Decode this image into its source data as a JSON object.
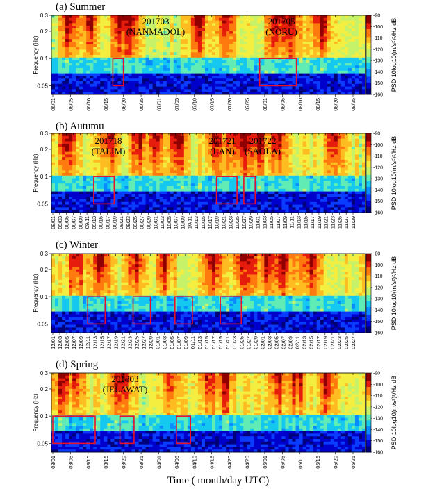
{
  "figure": {
    "xlabel": "Time ( month/day UTC)"
  },
  "colormap": [
    "#00007a",
    "#0000cc",
    "#0a3cff",
    "#0a8cff",
    "#15c8f0",
    "#60ecb4",
    "#c6f26a",
    "#f4ee40",
    "#ffbc21",
    "#ff7a0e",
    "#e61c0c",
    "#900000"
  ],
  "chart_data": [
    {
      "type": "heatmap",
      "title": "(a) Summer",
      "ylabel": "Frequency (Hz)",
      "yticks": [
        "0.3",
        "0.2",
        "0.1",
        "0.05"
      ],
      "colorbar_label": "PSD 10log10(m/s²)²/Hz dB",
      "colorbar_ticks": [
        "-90",
        "-100",
        "-110",
        "-120",
        "-130",
        "-140",
        "-150",
        "-160"
      ],
      "clim": [
        -160,
        -90
      ],
      "x_ticks": [
        "06/01",
        "06/05",
        "06/10",
        "06/15",
        "06/20",
        "06/25",
        "07/01",
        "07/05",
        "07/10",
        "07/15",
        "07/20",
        "07/25",
        "08/01",
        "08/05",
        "08/10",
        "08/15",
        "08/20",
        "08/25"
      ],
      "annotations": [
        {
          "line1": "201703",
          "line2": "(NANMADOL)"
        },
        {
          "line1": "201705",
          "line2": "(NORU)"
        }
      ],
      "boxes": [
        {
          "x0": "06/17",
          "x1": "06/20",
          "f0": 0.05,
          "f1": 0.1
        },
        {
          "x0": "07/30",
          "x1": "08/09",
          "f0": 0.05,
          "f1": 0.1
        }
      ]
    },
    {
      "type": "heatmap",
      "title": "(b) Autumu",
      "ylabel": "Frequency (Hz)",
      "yticks": [
        "0.3",
        "0.2",
        "0.1",
        "0.05"
      ],
      "colorbar_label": "PSD 10log10(m/s²)²/Hz dB",
      "colorbar_ticks": [
        "-90",
        "-100",
        "-110",
        "-120",
        "-130",
        "-140",
        "-150",
        "-160"
      ],
      "clim": [
        -160,
        -90
      ],
      "x_ticks": [
        "09/01",
        "09/03",
        "09/05",
        "09/07",
        "09/09",
        "09/11",
        "09/13",
        "09/15",
        "09/17",
        "09/19",
        "09/21",
        "09/23",
        "09/25",
        "09/27",
        "09/29",
        "10/01",
        "10/03",
        "10/05",
        "10/07",
        "10/09",
        "10/11",
        "10/13",
        "10/15",
        "10/17",
        "10/19",
        "10/21",
        "10/23",
        "10/25",
        "10/27",
        "10/29",
        "11/01",
        "11/03",
        "11/05",
        "11/07",
        "11/09",
        "11/11",
        "11/13",
        "11/15",
        "11/17",
        "11/19",
        "11/21",
        "11/23",
        "11/25",
        "11/27",
        "11/29"
      ],
      "annotations": [
        {
          "line1": "201718",
          "line2": "(TALIM)"
        },
        {
          "line1": "201721",
          "line2": "(LAN)"
        },
        {
          "line1": "201722",
          "line2": "(SAOLA)"
        }
      ],
      "boxes": [
        {
          "x0": "09/13",
          "x1": "09/19",
          "f0": 0.05,
          "f1": 0.1
        },
        {
          "x0": "10/19",
          "x1": "10/25",
          "f0": 0.05,
          "f1": 0.1
        },
        {
          "x0": "10/27",
          "x1": "10/31",
          "f0": 0.05,
          "f1": 0.1
        }
      ]
    },
    {
      "type": "heatmap",
      "title": "(c) Winter",
      "ylabel": "Frequency (Hz)",
      "yticks": [
        "0.3",
        "0.2",
        "0.1",
        "0.05"
      ],
      "colorbar_label": "PSD 10log10(m/s²)²/Hz dB",
      "colorbar_ticks": [
        "-90",
        "-100",
        "-110",
        "-120",
        "-130",
        "-140",
        "-150",
        "-160"
      ],
      "clim": [
        -160,
        -90
      ],
      "x_ticks": [
        "12/01",
        "12/03",
        "12/05",
        "12/07",
        "12/09",
        "12/11",
        "12/13",
        "12/15",
        "12/17",
        "12/19",
        "12/21",
        "12/23",
        "12/25",
        "12/27",
        "12/29",
        "01/01",
        "01/03",
        "01/05",
        "01/07",
        "01/09",
        "01/11",
        "01/13",
        "01/15",
        "01/17",
        "01/19",
        "01/21",
        "01/23",
        "01/25",
        "01/27",
        "01/29",
        "02/01",
        "02/03",
        "02/05",
        "02/07",
        "02/09",
        "02/11",
        "02/13",
        "02/15",
        "02/17",
        "02/19",
        "02/21",
        "02/23",
        "02/25",
        "02/27"
      ],
      "annotations": [],
      "boxes": [
        {
          "x0": "12/11",
          "x1": "12/16",
          "f0": 0.05,
          "f1": 0.1
        },
        {
          "x0": "12/24",
          "x1": "12/29",
          "f0": 0.05,
          "f1": 0.1
        },
        {
          "x0": "01/06",
          "x1": "01/11",
          "f0": 0.05,
          "f1": 0.1
        },
        {
          "x0": "01/19",
          "x1": "01/25",
          "f0": 0.05,
          "f1": 0.1
        }
      ]
    },
    {
      "type": "heatmap",
      "title": "(d) Spring",
      "ylabel": "Frequency (Hz)",
      "yticks": [
        "0.3",
        "0.2",
        "0.1",
        "0.05"
      ],
      "colorbar_label": "PSD 10log10(m/s²)²/Hz dB",
      "colorbar_ticks": [
        "-90",
        "-100",
        "-110",
        "-120",
        "-130",
        "-140",
        "-150",
        "-160"
      ],
      "clim": [
        -160,
        -90
      ],
      "x_ticks": [
        "03/01",
        "03/05",
        "03/10",
        "03/15",
        "03/20",
        "03/25",
        "04/01",
        "04/05",
        "04/10",
        "04/15",
        "04/20",
        "04/25",
        "05/01",
        "05/05",
        "05/10",
        "05/15",
        "05/20",
        "05/25"
      ],
      "annotations": [
        {
          "line1": "201803",
          "line2": "(JELAWAT)"
        }
      ],
      "boxes": [
        {
          "x0": "03/01",
          "x1": "03/12",
          "f0": 0.05,
          "f1": 0.1
        },
        {
          "x0": "03/19",
          "x1": "03/23",
          "f0": 0.05,
          "f1": 0.1
        },
        {
          "x0": "04/05",
          "x1": "04/09",
          "f0": 0.05,
          "f1": 0.1
        }
      ]
    }
  ]
}
